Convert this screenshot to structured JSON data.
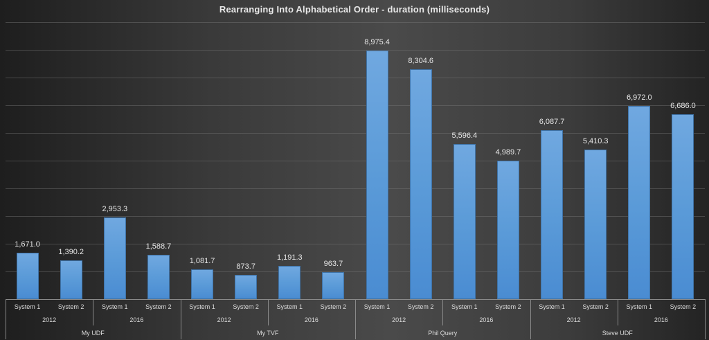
{
  "chart_data": {
    "type": "bar",
    "title": "Rearranging Into Alphabetical Order - duration (milliseconds)",
    "xlabel": "",
    "ylabel": "",
    "ylim": [
      0,
      10000
    ],
    "grid": true,
    "gridline_step": 1000,
    "legend": "none",
    "bar_color": "#5b9bd8",
    "groups": [
      {
        "name": "My UDF",
        "subgroups": [
          {
            "name": "2012",
            "items": [
              {
                "system": "System 1",
                "value": 1671.0,
                "label": "1,671.0"
              },
              {
                "system": "System 2",
                "value": 1390.2,
                "label": "1,390.2"
              }
            ]
          },
          {
            "name": "2016",
            "items": [
              {
                "system": "System 1",
                "value": 2953.3,
                "label": "2,953.3"
              },
              {
                "system": "System 2",
                "value": 1588.7,
                "label": "1,588.7"
              }
            ]
          }
        ]
      },
      {
        "name": "My TVF",
        "subgroups": [
          {
            "name": "2012",
            "items": [
              {
                "system": "System 1",
                "value": 1081.7,
                "label": "1,081.7"
              },
              {
                "system": "System 2",
                "value": 873.7,
                "label": "873.7"
              }
            ]
          },
          {
            "name": "2016",
            "items": [
              {
                "system": "System 1",
                "value": 1191.3,
                "label": "1,191.3"
              },
              {
                "system": "System 2",
                "value": 963.7,
                "label": "963.7"
              }
            ]
          }
        ]
      },
      {
        "name": "Phil Query",
        "subgroups": [
          {
            "name": "2012",
            "items": [
              {
                "system": "System 1",
                "value": 8975.4,
                "label": "8,975.4"
              },
              {
                "system": "System 2",
                "value": 8304.6,
                "label": "8,304.6"
              }
            ]
          },
          {
            "name": "2016",
            "items": [
              {
                "system": "System 1",
                "value": 5596.4,
                "label": "5,596.4"
              },
              {
                "system": "System 2",
                "value": 4989.7,
                "label": "4,989.7"
              }
            ]
          }
        ]
      },
      {
        "name": "Steve UDF",
        "subgroups": [
          {
            "name": "2012",
            "items": [
              {
                "system": "System 1",
                "value": 6087.7,
                "label": "6,087.7"
              },
              {
                "system": "System 2",
                "value": 5410.3,
                "label": "5,410.3"
              }
            ]
          },
          {
            "name": "2016",
            "items": [
              {
                "system": "System 1",
                "value": 6972.0,
                "label": "6,972.0"
              },
              {
                "system": "System 2",
                "value": 6686.0,
                "label": "6,686.0"
              }
            ]
          }
        ]
      }
    ]
  }
}
